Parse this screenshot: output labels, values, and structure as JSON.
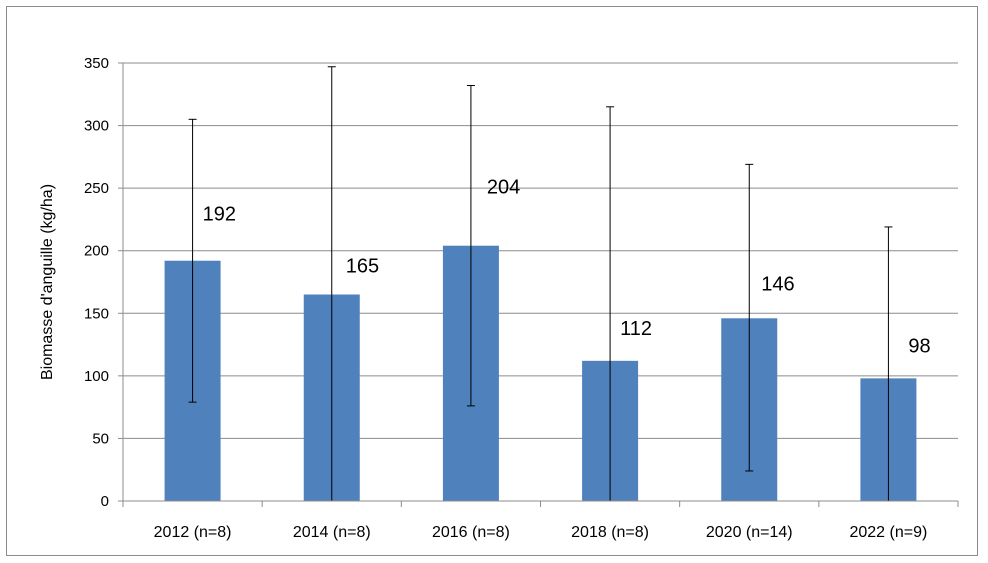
{
  "chart_data": {
    "type": "bar",
    "categories": [
      "2012 (n=8)",
      "2014 (n=8)",
      "2016 (n=8)",
      "2018 (n=8)",
      "2020 (n=14)",
      "2022 (n=9)"
    ],
    "values": [
      192,
      165,
      204,
      112,
      146,
      98
    ],
    "error_bars": [
      {
        "low": 79,
        "high": 305
      },
      {
        "low": 0,
        "high": 347
      },
      {
        "low": 76,
        "high": 332
      },
      {
        "low": 0,
        "high": 315
      },
      {
        "low": 24,
        "high": 269
      },
      {
        "low": 0,
        "high": 219
      }
    ],
    "data_labels": [
      "192",
      "165",
      "204",
      "112",
      "146",
      "98"
    ],
    "xlabel": "",
    "ylabel": "Biomasse d'anguille (kg/ha)",
    "ylim": [
      0,
      350
    ],
    "yticks": [
      0,
      50,
      100,
      150,
      200,
      250,
      300,
      350
    ],
    "ytick_labels": [
      "0",
      "50",
      "100",
      "150",
      "200",
      "250",
      "300",
      "350"
    ],
    "grid": true,
    "legend": "none",
    "colors": {
      "bar": "#4F81BD",
      "grid": "#8c8c8c",
      "axis": "#8c8c8c",
      "error_bar": "#000000"
    }
  }
}
